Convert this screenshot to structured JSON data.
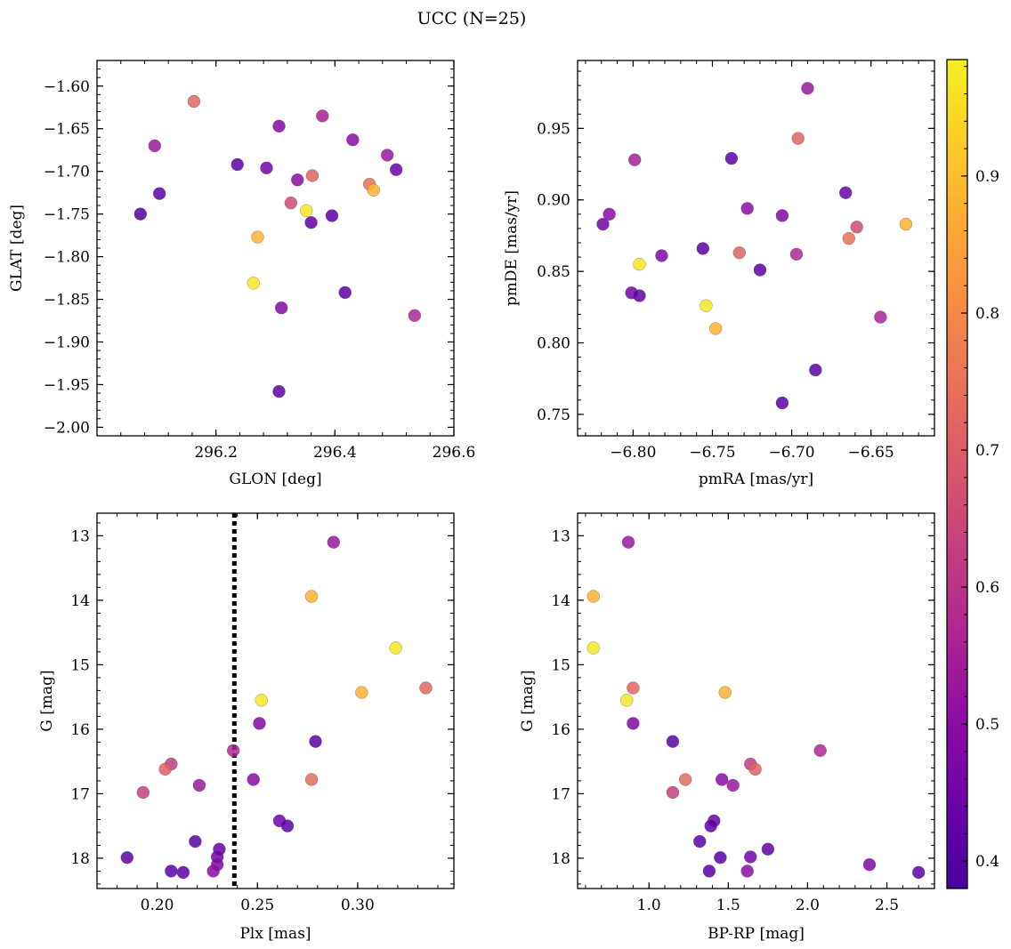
{
  "title": "UCC (N=25)",
  "colorbar": {
    "ticks": [
      0.4,
      0.5,
      0.6,
      0.7,
      0.8,
      0.9
    ],
    "range": [
      0.38,
      0.985
    ],
    "colormap": "plasma"
  },
  "chart_data": [
    {
      "type": "scatter",
      "id": "glon-glat",
      "xlabel": "GLON [deg]",
      "ylabel": "GLAT [deg]",
      "xlim": [
        296.0,
        296.6
      ],
      "ylim": [
        -2.01,
        -1.57
      ],
      "y_inverted": false,
      "xticks": [
        296.2,
        296.4,
        296.6
      ],
      "xtick_labels": [
        "296.2",
        "296.4",
        "296.6"
      ],
      "yticks": [
        -1.6,
        -1.65,
        -1.7,
        -1.75,
        -1.8,
        -1.85,
        -1.9,
        -1.95,
        -2.0
      ],
      "ytick_labels": [
        "−1.60",
        "−1.65",
        "−1.70",
        "−1.75",
        "−1.80",
        "−1.85",
        "−1.90",
        "−1.95",
        "−2.00"
      ],
      "points": [
        {
          "x": 296.163,
          "y": -1.618,
          "c": 0.72
        },
        {
          "x": 296.097,
          "y": -1.67,
          "c": 0.53
        },
        {
          "x": 296.306,
          "y": -1.647,
          "c": 0.48
        },
        {
          "x": 296.379,
          "y": -1.635,
          "c": 0.55
        },
        {
          "x": 296.43,
          "y": -1.663,
          "c": 0.49
        },
        {
          "x": 296.488,
          "y": -1.681,
          "c": 0.53
        },
        {
          "x": 296.503,
          "y": -1.698,
          "c": 0.44
        },
        {
          "x": 296.236,
          "y": -1.692,
          "c": 0.41
        },
        {
          "x": 296.285,
          "y": -1.696,
          "c": 0.45
        },
        {
          "x": 296.105,
          "y": -1.726,
          "c": 0.41
        },
        {
          "x": 296.337,
          "y": -1.71,
          "c": 0.5
        },
        {
          "x": 296.362,
          "y": -1.705,
          "c": 0.71
        },
        {
          "x": 296.458,
          "y": -1.715,
          "c": 0.74
        },
        {
          "x": 296.465,
          "y": -1.722,
          "c": 0.88
        },
        {
          "x": 296.073,
          "y": -1.75,
          "c": 0.4
        },
        {
          "x": 296.326,
          "y": -1.737,
          "c": 0.66
        },
        {
          "x": 296.352,
          "y": -1.746,
          "c": 0.97
        },
        {
          "x": 296.395,
          "y": -1.752,
          "c": 0.41
        },
        {
          "x": 296.36,
          "y": -1.76,
          "c": 0.42
        },
        {
          "x": 296.27,
          "y": -1.777,
          "c": 0.88
        },
        {
          "x": 296.263,
          "y": -1.831,
          "c": 0.97
        },
        {
          "x": 296.417,
          "y": -1.842,
          "c": 0.41
        },
        {
          "x": 296.31,
          "y": -1.86,
          "c": 0.48
        },
        {
          "x": 296.534,
          "y": -1.869,
          "c": 0.57
        },
        {
          "x": 296.306,
          "y": -1.958,
          "c": 0.41
        }
      ]
    },
    {
      "type": "scatter",
      "id": "pmra-pmde",
      "xlabel": "pmRA [mas/yr]",
      "ylabel": "pmDE [mas/yr]",
      "xlim": [
        -6.835,
        -6.61
      ],
      "ylim": [
        0.735,
        0.9975
      ],
      "y_inverted": false,
      "xticks": [
        -6.8,
        -6.75,
        -6.7,
        -6.65
      ],
      "xtick_labels": [
        "−6.80",
        "−6.75",
        "−6.70",
        "−6.65"
      ],
      "yticks": [
        0.75,
        0.8,
        0.85,
        0.9,
        0.95
      ],
      "ytick_labels": [
        "0.75",
        "0.80",
        "0.85",
        "0.90",
        "0.95"
      ],
      "points": [
        {
          "x": -6.69,
          "y": 0.978,
          "c": 0.53
        },
        {
          "x": -6.696,
          "y": 0.943,
          "c": 0.72
        },
        {
          "x": -6.799,
          "y": 0.928,
          "c": 0.55
        },
        {
          "x": -6.738,
          "y": 0.929,
          "c": 0.41
        },
        {
          "x": -6.666,
          "y": 0.905,
          "c": 0.44
        },
        {
          "x": -6.728,
          "y": 0.894,
          "c": 0.5
        },
        {
          "x": -6.706,
          "y": 0.889,
          "c": 0.48
        },
        {
          "x": -6.815,
          "y": 0.89,
          "c": 0.49
        },
        {
          "x": -6.819,
          "y": 0.883,
          "c": 0.45
        },
        {
          "x": -6.628,
          "y": 0.883,
          "c": 0.88
        },
        {
          "x": -6.659,
          "y": 0.881,
          "c": 0.66
        },
        {
          "x": -6.664,
          "y": 0.873,
          "c": 0.74
        },
        {
          "x": -6.756,
          "y": 0.866,
          "c": 0.41
        },
        {
          "x": -6.733,
          "y": 0.863,
          "c": 0.71
        },
        {
          "x": -6.697,
          "y": 0.862,
          "c": 0.57
        },
        {
          "x": -6.782,
          "y": 0.861,
          "c": 0.48
        },
        {
          "x": -6.796,
          "y": 0.855,
          "c": 0.97
        },
        {
          "x": -6.72,
          "y": 0.851,
          "c": 0.41
        },
        {
          "x": -6.801,
          "y": 0.835,
          "c": 0.45
        },
        {
          "x": -6.796,
          "y": 0.833,
          "c": 0.42
        },
        {
          "x": -6.754,
          "y": 0.826,
          "c": 0.97
        },
        {
          "x": -6.644,
          "y": 0.818,
          "c": 0.56
        },
        {
          "x": -6.748,
          "y": 0.81,
          "c": 0.88
        },
        {
          "x": -6.685,
          "y": 0.781,
          "c": 0.41
        },
        {
          "x": -6.706,
          "y": 0.758,
          "c": 0.41
        }
      ]
    },
    {
      "type": "scatter",
      "id": "plx-g",
      "xlabel": "Plx [mas]",
      "ylabel": "G [mag]",
      "xlim": [
        0.17,
        0.348
      ],
      "ylim": [
        12.65,
        18.47
      ],
      "y_inverted": true,
      "xticks": [
        0.2,
        0.25,
        0.3
      ],
      "xtick_labels": [
        "0.20",
        "0.25",
        "0.30"
      ],
      "yticks": [
        13,
        14,
        15,
        16,
        17,
        18
      ],
      "ytick_labels": [
        "13",
        "14",
        "15",
        "16",
        "17",
        "18"
      ],
      "vline": {
        "x": 0.2385,
        "style": "dotted"
      },
      "points": [
        {
          "x": 0.288,
          "y": 13.1,
          "c": 0.53
        },
        {
          "x": 0.277,
          "y": 13.94,
          "c": 0.88
        },
        {
          "x": 0.319,
          "y": 14.74,
          "c": 0.97
        },
        {
          "x": 0.302,
          "y": 15.43,
          "c": 0.88
        },
        {
          "x": 0.334,
          "y": 15.36,
          "c": 0.72
        },
        {
          "x": 0.252,
          "y": 15.55,
          "c": 0.97
        },
        {
          "x": 0.251,
          "y": 15.91,
          "c": 0.48
        },
        {
          "x": 0.279,
          "y": 16.19,
          "c": 0.41
        },
        {
          "x": 0.238,
          "y": 16.33,
          "c": 0.57
        },
        {
          "x": 0.207,
          "y": 16.54,
          "c": 0.62
        },
        {
          "x": 0.204,
          "y": 16.62,
          "c": 0.71
        },
        {
          "x": 0.248,
          "y": 16.78,
          "c": 0.49
        },
        {
          "x": 0.277,
          "y": 16.78,
          "c": 0.73
        },
        {
          "x": 0.221,
          "y": 16.87,
          "c": 0.53
        },
        {
          "x": 0.193,
          "y": 16.98,
          "c": 0.63
        },
        {
          "x": 0.261,
          "y": 17.42,
          "c": 0.44
        },
        {
          "x": 0.265,
          "y": 17.5,
          "c": 0.41
        },
        {
          "x": 0.219,
          "y": 17.74,
          "c": 0.41
        },
        {
          "x": 0.231,
          "y": 17.86,
          "c": 0.42
        },
        {
          "x": 0.23,
          "y": 17.98,
          "c": 0.45
        },
        {
          "x": 0.185,
          "y": 17.99,
          "c": 0.41
        },
        {
          "x": 0.23,
          "y": 18.1,
          "c": 0.48
        },
        {
          "x": 0.228,
          "y": 18.2,
          "c": 0.5
        },
        {
          "x": 0.207,
          "y": 18.2,
          "c": 0.41
        },
        {
          "x": 0.213,
          "y": 18.22,
          "c": 0.41
        }
      ]
    },
    {
      "type": "scatter",
      "id": "bprp-g",
      "xlabel": "BP-RP [mag]",
      "ylabel": "G [mag]",
      "xlim": [
        0.55,
        2.8
      ],
      "ylim": [
        12.65,
        18.47
      ],
      "y_inverted": true,
      "xticks": [
        1.0,
        1.5,
        2.0,
        2.5
      ],
      "xtick_labels": [
        "1.0",
        "1.5",
        "2.0",
        "2.5"
      ],
      "yticks": [
        13,
        14,
        15,
        16,
        17,
        18
      ],
      "ytick_labels": [
        "13",
        "14",
        "15",
        "16",
        "17",
        "18"
      ],
      "points": [
        {
          "x": 0.87,
          "y": 13.1,
          "c": 0.53
        },
        {
          "x": 0.65,
          "y": 13.94,
          "c": 0.88
        },
        {
          "x": 0.65,
          "y": 14.74,
          "c": 0.97
        },
        {
          "x": 1.48,
          "y": 15.43,
          "c": 0.88
        },
        {
          "x": 0.9,
          "y": 15.36,
          "c": 0.72
        },
        {
          "x": 0.86,
          "y": 15.55,
          "c": 0.97
        },
        {
          "x": 0.9,
          "y": 15.91,
          "c": 0.48
        },
        {
          "x": 1.15,
          "y": 16.19,
          "c": 0.41
        },
        {
          "x": 2.08,
          "y": 16.33,
          "c": 0.57
        },
        {
          "x": 1.64,
          "y": 16.54,
          "c": 0.62
        },
        {
          "x": 1.67,
          "y": 16.62,
          "c": 0.71
        },
        {
          "x": 1.46,
          "y": 16.78,
          "c": 0.49
        },
        {
          "x": 1.23,
          "y": 16.78,
          "c": 0.73
        },
        {
          "x": 1.53,
          "y": 16.87,
          "c": 0.53
        },
        {
          "x": 1.15,
          "y": 16.98,
          "c": 0.63
        },
        {
          "x": 1.41,
          "y": 17.42,
          "c": 0.44
        },
        {
          "x": 1.39,
          "y": 17.5,
          "c": 0.41
        },
        {
          "x": 1.32,
          "y": 17.74,
          "c": 0.41
        },
        {
          "x": 1.75,
          "y": 17.86,
          "c": 0.42
        },
        {
          "x": 1.64,
          "y": 17.98,
          "c": 0.45
        },
        {
          "x": 1.45,
          "y": 17.99,
          "c": 0.41
        },
        {
          "x": 2.39,
          "y": 18.1,
          "c": 0.48
        },
        {
          "x": 1.62,
          "y": 18.2,
          "c": 0.5
        },
        {
          "x": 1.38,
          "y": 18.2,
          "c": 0.41
        },
        {
          "x": 2.7,
          "y": 18.22,
          "c": 0.41
        }
      ]
    }
  ]
}
